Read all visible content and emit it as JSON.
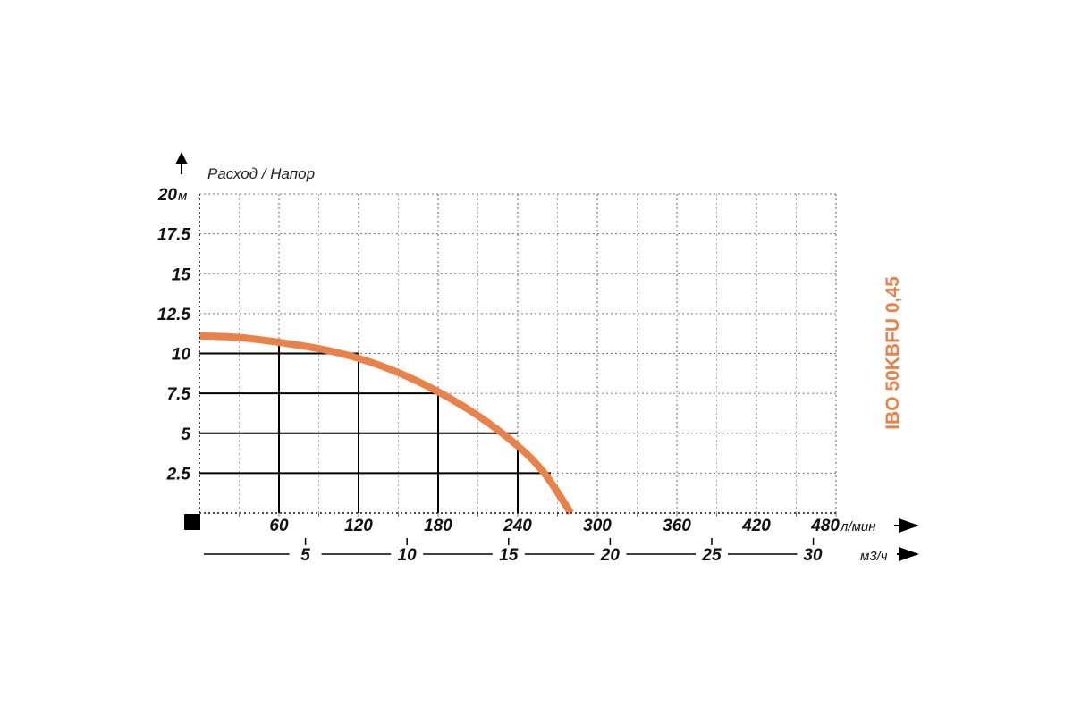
{
  "chart_data": {
    "type": "line",
    "title": "IBO 50KBFU 0,45",
    "ylabel": "Расход / Напор",
    "y_unit": "м",
    "x_unit": "л/мин",
    "x2_unit": "м3/ч",
    "ylim": [
      0,
      20
    ],
    "xlim": [
      0,
      480
    ],
    "x2lim": [
      0,
      32
    ],
    "y_ticks": [
      "2.5",
      "5",
      "7.5",
      "10",
      "12.5",
      "15",
      "17.5",
      "20"
    ],
    "x_ticks": [
      "60",
      "120",
      "180",
      "240",
      "300",
      "360",
      "420",
      "480"
    ],
    "x2_ticks": [
      "5",
      "10",
      "15",
      "20",
      "25",
      "30"
    ],
    "grid": true,
    "colors": {
      "curve": "#e8814a",
      "title": "#e8814a",
      "axis": "#111111"
    },
    "series": [
      {
        "x": [
          0,
          30,
          60,
          90,
          120,
          150,
          180,
          210,
          240,
          260,
          280
        ],
        "y": [
          11.1,
          11.0,
          10.7,
          10.3,
          9.7,
          8.8,
          7.6,
          6.1,
          4.2,
          2.5,
          0.0
        ]
      }
    ],
    "reference_points": [
      {
        "x": 60,
        "y": 10.7
      },
      {
        "x": 120,
        "y": 9.7
      },
      {
        "x": 180,
        "y": 7.6
      },
      {
        "x": 240,
        "y": 4.2
      }
    ]
  }
}
